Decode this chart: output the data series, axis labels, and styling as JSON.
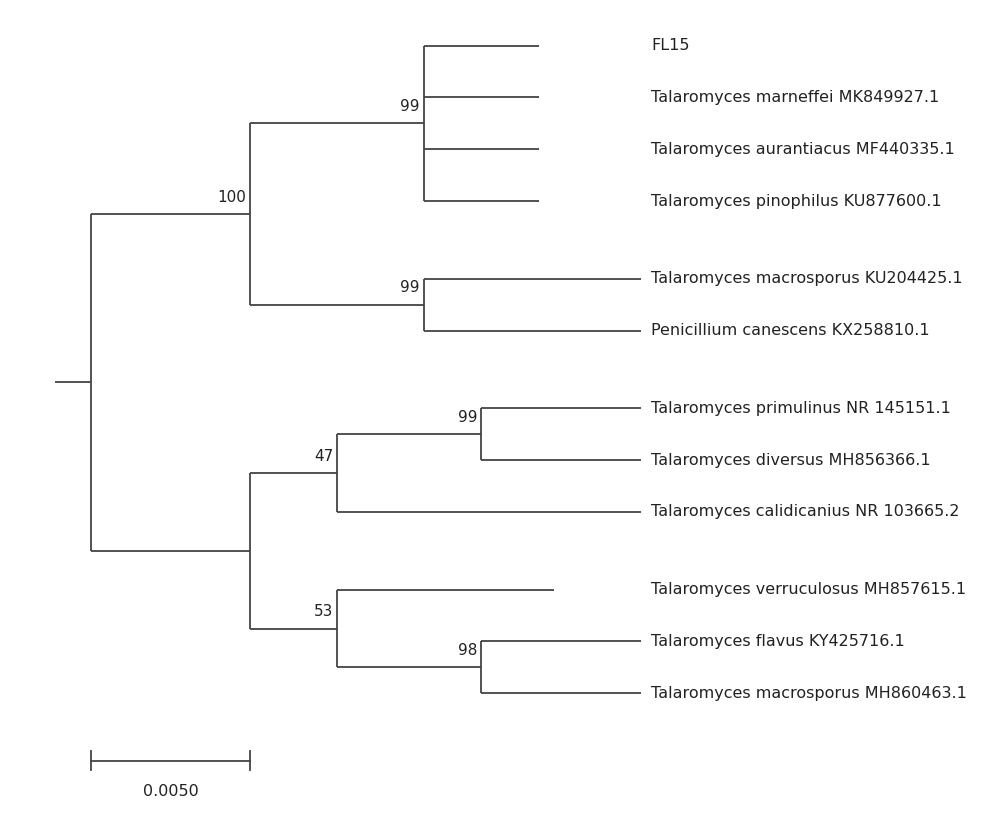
{
  "taxa_y": {
    "FL15": 13.5,
    "Talaromyces marneffei MK849927.1": 12.5,
    "Talaromyces aurantiacus MF440335.1": 11.5,
    "Talaromyces pinophilus KU877600.1": 10.5,
    "Talaromyces macrosporus KU204425.1": 9.0,
    "Penicillium canescens KX258810.1": 8.0,
    "Talaromyces primulinus NR 145151.1": 6.5,
    "Talaromyces diversus MH856366.1": 5.5,
    "Talaromyces calidicanius NR 103665.2": 4.5,
    "Talaromyces verruculosus MH857615.1": 3.0,
    "Talaromyces flavus KY425716.1": 2.0,
    "Talaromyces macrosporus MH860463.1": 1.0
  },
  "line_color": "#444444",
  "bg_color": "#ffffff",
  "font_size": 11.5,
  "bootstrap_font_size": 11,
  "scale_bar_value": "0.0050"
}
